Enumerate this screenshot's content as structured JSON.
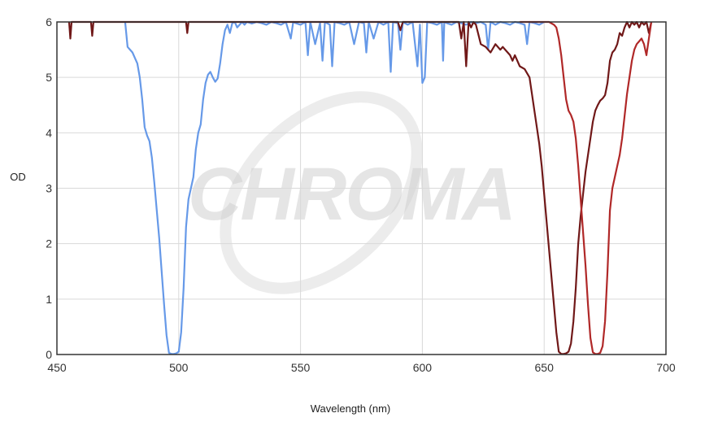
{
  "chart_data": {
    "type": "line",
    "title": "",
    "xlabel": "Wavelength (nm)",
    "ylabel": "OD",
    "xlim": [
      450,
      700
    ],
    "ylim": [
      0,
      6
    ],
    "xticks": [
      450,
      500,
      550,
      600,
      650,
      700
    ],
    "yticks": [
      0,
      1,
      2,
      3,
      4,
      5,
      6
    ],
    "grid": true,
    "watermark": "CHROMA",
    "series": [
      {
        "color": "#6699e8",
        "x": [
          478,
          479,
          480,
          481,
          482,
          483,
          484,
          485,
          486,
          487,
          488,
          489,
          490,
          491,
          492,
          493,
          494,
          495,
          496,
          497,
          498,
          499,
          500,
          501,
          502,
          503,
          504,
          505,
          506,
          507,
          508,
          509,
          510,
          511,
          512,
          513,
          514,
          515,
          516,
          517,
          518,
          519,
          520,
          521,
          522,
          523,
          524,
          525,
          526,
          527,
          528,
          530,
          532,
          534,
          536,
          538,
          540,
          542,
          544,
          546,
          547,
          548,
          550,
          552,
          553,
          554,
          556,
          558,
          559,
          560,
          562,
          563,
          564,
          566,
          568,
          570,
          572,
          574,
          576,
          577,
          578,
          580,
          582,
          584,
          586,
          587,
          588,
          590,
          591,
          592,
          594,
          596,
          598,
          599,
          600,
          601,
          602,
          604,
          606,
          608,
          608.5,
          609,
          610,
          612,
          614,
          616,
          618,
          620,
          622,
          624,
          626,
          627,
          628,
          630,
          632,
          634,
          636,
          638,
          640,
          642,
          643,
          644,
          646,
          648,
          650
        ],
        "y": [
          6.0,
          5.55,
          5.5,
          5.45,
          5.35,
          5.25,
          5.0,
          4.6,
          4.1,
          3.95,
          3.85,
          3.55,
          3.1,
          2.6,
          2.1,
          1.5,
          0.9,
          0.35,
          0.03,
          0.01,
          0.01,
          0.02,
          0.05,
          0.4,
          1.2,
          2.3,
          2.8,
          3.0,
          3.2,
          3.7,
          4.0,
          4.15,
          4.6,
          4.9,
          5.05,
          5.1,
          5.0,
          4.92,
          4.98,
          5.25,
          5.6,
          5.85,
          5.95,
          5.8,
          5.98,
          6.0,
          5.9,
          5.95,
          6.0,
          5.95,
          6.0,
          5.97,
          6.0,
          5.98,
          5.95,
          6.0,
          5.98,
          5.95,
          6.0,
          5.7,
          6.0,
          5.98,
          5.95,
          6.0,
          5.4,
          6.0,
          5.6,
          5.98,
          5.3,
          6.0,
          5.95,
          5.2,
          6.0,
          5.98,
          5.95,
          6.0,
          5.6,
          6.0,
          5.98,
          5.45,
          6.0,
          5.7,
          6.0,
          5.95,
          6.0,
          5.1,
          6.0,
          5.98,
          5.5,
          6.0,
          5.95,
          6.0,
          5.2,
          5.95,
          4.9,
          5.0,
          6.0,
          5.98,
          5.95,
          6.0,
          5.3,
          6.0,
          5.98,
          5.95,
          6.0,
          5.98,
          5.95,
          6.0,
          5.98,
          6.0,
          5.95,
          5.5,
          6.0,
          5.95,
          6.0,
          5.98,
          5.95,
          6.0,
          5.98,
          5.95,
          5.6,
          6.0,
          5.98,
          5.95,
          6.0
        ]
      },
      {
        "color": "#701818",
        "x": [
          455,
          455.5,
          456,
          464,
          464.5,
          465,
          503,
          503.5,
          504,
          570,
          574,
          578,
          590,
          591,
          592,
          600,
          610,
          615,
          616,
          617,
          618,
          619,
          620,
          621,
          622,
          624,
          626,
          628,
          630,
          632,
          633,
          634,
          635,
          636,
          637,
          638,
          640,
          642,
          644,
          645,
          646,
          647,
          648,
          649,
          650,
          651,
          652,
          653,
          654,
          655,
          656,
          657,
          658,
          659,
          660,
          661,
          662,
          663,
          664,
          665,
          666,
          667,
          668,
          669,
          670,
          671,
          672,
          673,
          674,
          675,
          676,
          677,
          678,
          679,
          680,
          681,
          682,
          683,
          684,
          685,
          686,
          687,
          688,
          689,
          690,
          691,
          692,
          693,
          694
        ],
        "y": [
          6.0,
          5.7,
          6.0,
          6.0,
          5.75,
          6.0,
          6.0,
          5.8,
          6.0,
          6.0,
          6.0,
          6.0,
          6.0,
          5.85,
          6.0,
          6.0,
          6.0,
          6.0,
          5.7,
          6.0,
          5.2,
          6.0,
          5.9,
          6.0,
          5.95,
          5.6,
          5.55,
          5.45,
          5.6,
          5.5,
          5.55,
          5.5,
          5.45,
          5.4,
          5.3,
          5.4,
          5.2,
          5.15,
          5.0,
          4.7,
          4.4,
          4.1,
          3.8,
          3.4,
          2.9,
          2.4,
          1.9,
          1.4,
          0.9,
          0.4,
          0.05,
          0.01,
          0.01,
          0.02,
          0.05,
          0.2,
          0.6,
          1.2,
          2.0,
          2.5,
          2.9,
          3.3,
          3.6,
          3.9,
          4.2,
          4.4,
          4.5,
          4.58,
          4.62,
          4.68,
          4.9,
          5.3,
          5.45,
          5.5,
          5.6,
          5.8,
          5.75,
          5.9,
          6.0,
          5.9,
          6.0,
          5.95,
          6.0,
          5.9,
          6.0,
          5.95,
          6.0,
          5.8,
          6.0
        ]
      },
      {
        "color": "#b02828",
        "x": [
          640,
          645,
          650,
          652,
          654,
          655,
          656,
          657,
          658,
          659,
          660,
          661,
          662,
          663,
          664,
          665,
          666,
          667,
          668,
          669,
          670,
          671,
          672,
          673,
          674,
          675,
          676,
          677,
          678,
          679,
          680,
          681,
          682,
          683,
          684,
          685,
          686,
          687,
          688,
          689,
          690,
          691,
          692,
          693,
          694
        ],
        "y": [
          6.0,
          6.0,
          6.0,
          6.0,
          5.95,
          5.9,
          5.7,
          5.4,
          5.0,
          4.6,
          4.4,
          4.32,
          4.2,
          3.9,
          3.4,
          2.8,
          2.2,
          1.6,
          0.9,
          0.3,
          0.04,
          0.01,
          0.01,
          0.03,
          0.15,
          0.6,
          1.5,
          2.6,
          3.0,
          3.2,
          3.4,
          3.6,
          3.9,
          4.3,
          4.7,
          5.0,
          5.3,
          5.5,
          5.6,
          5.65,
          5.7,
          5.6,
          5.4,
          5.7,
          6.0
        ]
      }
    ]
  }
}
